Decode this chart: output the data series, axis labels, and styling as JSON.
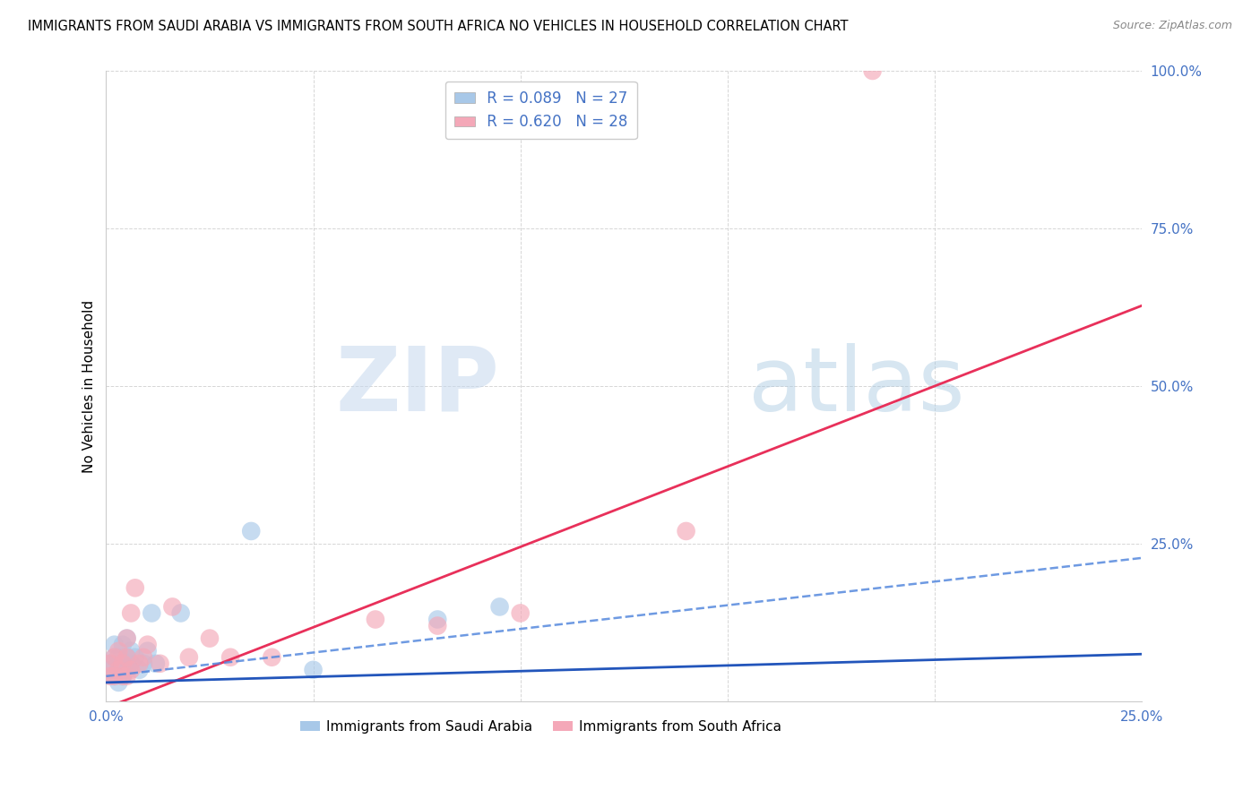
{
  "title": "IMMIGRANTS FROM SAUDI ARABIA VS IMMIGRANTS FROM SOUTH AFRICA NO VEHICLES IN HOUSEHOLD CORRELATION CHART",
  "source": "Source: ZipAtlas.com",
  "ylabel": "No Vehicles in Household",
  "xlim": [
    0,
    0.25
  ],
  "ylim": [
    0,
    1.0
  ],
  "saudi_R": 0.089,
  "saudi_N": 27,
  "southafrica_R": 0.62,
  "southafrica_N": 28,
  "saudi_color": "#a8c8e8",
  "southafrica_color": "#f4a8b8",
  "saudi_line_solid_color": "#2255bb",
  "saudi_line_dash_color": "#5588dd",
  "southafrica_line_color": "#e8305a",
  "tick_color": "#4472c4",
  "watermark_color": "#c8ddf0",
  "saudi_x": [
    0.001,
    0.001,
    0.002,
    0.002,
    0.002,
    0.003,
    0.003,
    0.003,
    0.004,
    0.004,
    0.004,
    0.005,
    0.005,
    0.005,
    0.006,
    0.006,
    0.007,
    0.008,
    0.009,
    0.01,
    0.011,
    0.012,
    0.018,
    0.035,
    0.05,
    0.08,
    0.095
  ],
  "saudi_y": [
    0.05,
    0.06,
    0.04,
    0.07,
    0.09,
    0.03,
    0.05,
    0.07,
    0.04,
    0.06,
    0.09,
    0.05,
    0.07,
    0.1,
    0.06,
    0.08,
    0.07,
    0.05,
    0.06,
    0.08,
    0.14,
    0.06,
    0.14,
    0.27,
    0.05,
    0.13,
    0.15
  ],
  "southafrica_x": [
    0.001,
    0.001,
    0.002,
    0.002,
    0.003,
    0.003,
    0.004,
    0.004,
    0.005,
    0.005,
    0.005,
    0.006,
    0.006,
    0.007,
    0.008,
    0.009,
    0.01,
    0.013,
    0.016,
    0.02,
    0.025,
    0.03,
    0.04,
    0.065,
    0.08,
    0.1,
    0.14,
    0.185
  ],
  "southafrica_y": [
    0.04,
    0.06,
    0.04,
    0.07,
    0.05,
    0.08,
    0.04,
    0.06,
    0.04,
    0.07,
    0.1,
    0.05,
    0.14,
    0.18,
    0.06,
    0.07,
    0.09,
    0.06,
    0.15,
    0.07,
    0.1,
    0.07,
    0.07,
    0.13,
    0.12,
    0.14,
    0.27,
    1.0
  ],
  "saudi_solid_slope": 0.18,
  "saudi_solid_intercept": 0.03,
  "saudi_dash_slope": 0.75,
  "saudi_dash_intercept": 0.04,
  "sa_solid_slope": 2.55,
  "sa_solid_intercept": -0.01
}
